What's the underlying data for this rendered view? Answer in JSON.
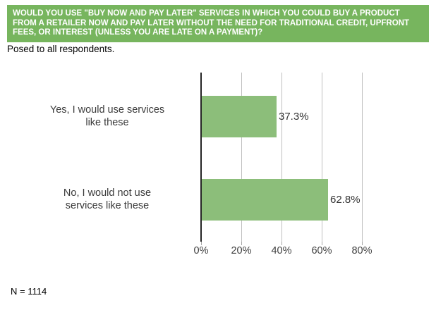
{
  "header": {
    "question": "WOULD YOU USE \"BUY NOW AND PAY LATER\" SERVICES IN WHICH YOU COULD BUY A PRODUCT FROM A RETAILER NOW AND PAY LATER WITHOUT THE NEED FOR TRADITIONAL CREDIT, UPFRONT FEES, OR INTEREST (UNLESS YOU ARE LATE ON A PAYMENT)?",
    "subtitle": "Posed to all respondents."
  },
  "chart_data": {
    "type": "bar",
    "orientation": "horizontal",
    "categories": [
      "Yes, I would use services like these",
      "No, I would not use services like these"
    ],
    "values": [
      37.3,
      62.8
    ],
    "data_labels": [
      "37.3%",
      "62.8%"
    ],
    "x_ticks": [
      "0%",
      "20%",
      "40%",
      "60%",
      "80%"
    ],
    "xlim": [
      0,
      80
    ],
    "grid": true,
    "legend": "none",
    "title": "",
    "xlabel": "",
    "ylabel": ""
  },
  "footer": {
    "note": "N = 1114"
  },
  "colors": {
    "banner_bg": "#77b55e",
    "banner_text": "#ffffff",
    "bar_fill": "#8cbe7a",
    "gridline": "#bfbfbf",
    "axis_line": "#262626",
    "chart_text": "#3b3b3b"
  }
}
